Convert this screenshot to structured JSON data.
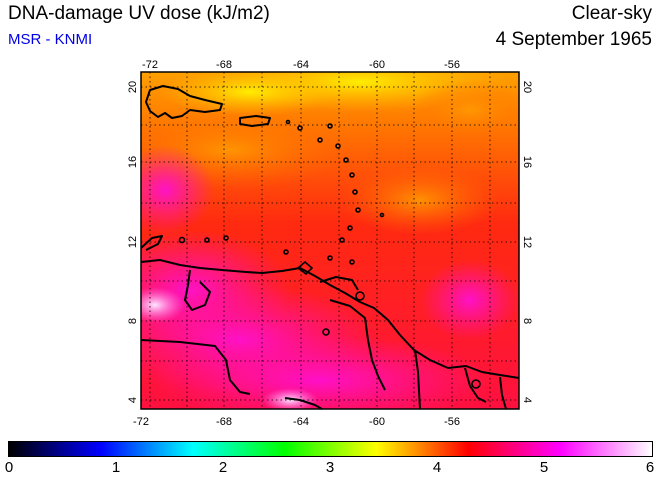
{
  "header": {
    "title": "DNA-damage UV dose (kJ/m2)",
    "source": "MSR - KNMI",
    "sky_condition": "Clear-sky",
    "date": "4 September 1965"
  },
  "map": {
    "lon_ticks": [
      "-72",
      "-68",
      "-64",
      "-60",
      "-56"
    ],
    "lat_ticks": [
      "20",
      "16",
      "12",
      "8",
      "4"
    ],
    "lon_range": [
      -72,
      -52
    ],
    "lat_range": [
      3.5,
      20.5
    ]
  },
  "colorbar": {
    "labels": [
      "0",
      "1",
      "2",
      "3",
      "4",
      "5",
      "6"
    ],
    "colors": [
      "#000000",
      "#0000ff",
      "#00ffff",
      "#00ff00",
      "#ffff00",
      "#ff0000",
      "#ff00ff",
      "#ffffff"
    ]
  }
}
